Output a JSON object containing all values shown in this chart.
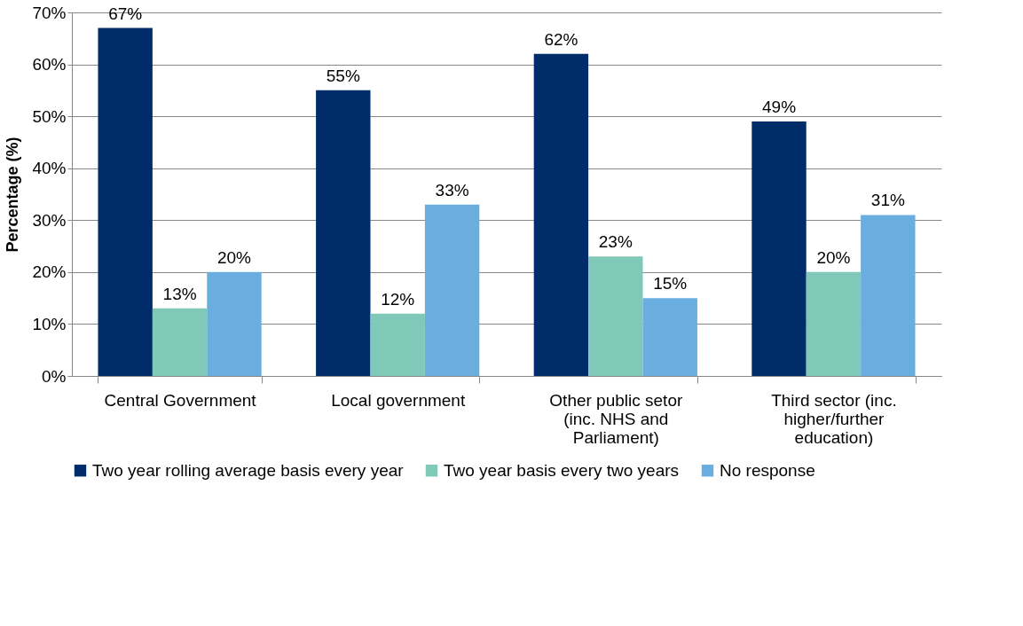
{
  "chart_data": {
    "type": "bar",
    "ylabel": "Percentage (%)",
    "categories": [
      "Central Government",
      "Local government",
      "Other public setor (inc. NHS and Parliament)",
      "Third sector (inc. higher/further education)"
    ],
    "series": [
      {
        "name": "Two year rolling average basis every year",
        "color": "#002d6a",
        "values": [
          67,
          55,
          62,
          49
        ],
        "value_labels": [
          "67%",
          "55%",
          "62%",
          "49%"
        ]
      },
      {
        "name": "Two year basis every two years",
        "color": "#80c8b8",
        "values": [
          13,
          12,
          23,
          20
        ],
        "value_labels": [
          "13%",
          "12%",
          "23%",
          "20%"
        ]
      },
      {
        "name": "No response",
        "color": "#6aaee0",
        "values": [
          20,
          33,
          15,
          31
        ],
        "value_labels": [
          "20%",
          "33%",
          "15%",
          "31%"
        ]
      }
    ],
    "ylim": [
      0,
      70
    ],
    "yticks": [
      {
        "value": 0,
        "label": "0%"
      },
      {
        "value": 10,
        "label": "10%"
      },
      {
        "value": 20,
        "label": "20%"
      },
      {
        "value": 30,
        "label": "30%"
      },
      {
        "value": 40,
        "label": "40%"
      },
      {
        "value": 50,
        "label": "50%"
      },
      {
        "value": 60,
        "label": "60%"
      },
      {
        "value": 70,
        "label": "70%"
      }
    ],
    "grid": "y",
    "legend": "bottom"
  }
}
